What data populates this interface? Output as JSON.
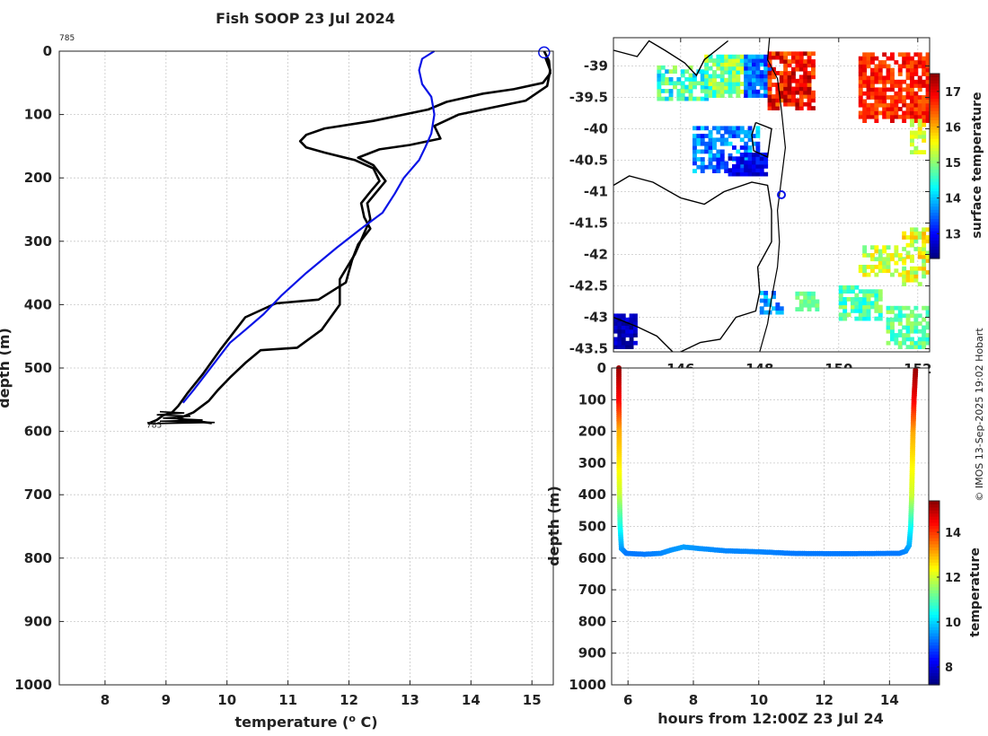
{
  "title": "Fish SOOP 23 Jul 2024",
  "credit": "© IMOS 13-Sep-2025 19:02 Hobart",
  "colors": {
    "profile_black": "#000000",
    "profile_blue": "#0a14e6",
    "grid": "#c8c8c8"
  },
  "chart_data": [
    {
      "type": "line",
      "name": "depth profile",
      "title": "Fish SOOP 23 Jul 2024",
      "xlabel": "temperature (",
      "xlabel_sup": "o",
      "xlabel_unit": " C)",
      "ylabel": "depth (m)",
      "xlim": [
        7.25,
        15.35
      ],
      "ylim": [
        0,
        1000
      ],
      "xticks": [
        "8",
        "9",
        "10",
        "11",
        "12",
        "13",
        "14",
        "15"
      ],
      "yticks": [
        "0",
        "100",
        "200",
        "300",
        "400",
        "500",
        "600",
        "700",
        "800",
        "900",
        "1000"
      ],
      "annotations": [
        {
          "text": "785",
          "x": 7.25,
          "y": 0,
          "position": "above-left"
        },
        {
          "text": "785",
          "x": 8.65,
          "y": 590,
          "position": "inline"
        }
      ],
      "start_marker": {
        "x": 15.2,
        "y": 2
      },
      "series": [
        {
          "name": "descent",
          "color": "black",
          "points": [
            [
              15.2,
              0
            ],
            [
              15.28,
              15
            ],
            [
              15.3,
              35
            ],
            [
              15.18,
              50
            ],
            [
              14.7,
              60
            ],
            [
              14.2,
              67
            ],
            [
              13.6,
              80
            ],
            [
              13.3,
              92
            ],
            [
              12.4,
              110
            ],
            [
              11.6,
              122
            ],
            [
              11.3,
              132
            ],
            [
              11.2,
              142
            ],
            [
              11.3,
              152
            ],
            [
              11.6,
              160
            ],
            [
              12.1,
              172
            ],
            [
              12.4,
              185
            ],
            [
              12.5,
              205
            ],
            [
              12.35,
              222
            ],
            [
              12.2,
              240
            ],
            [
              12.25,
              262
            ],
            [
              12.35,
              280
            ],
            [
              12.15,
              305
            ],
            [
              12.05,
              330
            ],
            [
              11.95,
              365
            ],
            [
              11.5,
              392
            ],
            [
              10.8,
              398
            ],
            [
              10.3,
              420
            ],
            [
              10.1,
              445
            ],
            [
              9.9,
              470
            ],
            [
              9.6,
              510
            ],
            [
              9.35,
              540
            ],
            [
              9.2,
              560
            ],
            [
              9.1,
              570
            ],
            [
              8.95,
              575
            ],
            [
              8.85,
              582
            ],
            [
              8.7,
              588
            ]
          ]
        },
        {
          "name": "ascent",
          "color": "black",
          "points": [
            [
              9.75,
              587
            ],
            [
              9.2,
              580
            ],
            [
              9.45,
              570
            ],
            [
              9.7,
              552
            ],
            [
              9.85,
              535
            ],
            [
              10.05,
              515
            ],
            [
              10.3,
              492
            ],
            [
              10.55,
              472
            ],
            [
              11.15,
              468
            ],
            [
              11.55,
              440
            ],
            [
              11.85,
              400
            ],
            [
              11.85,
              360
            ],
            [
              12.1,
              320
            ],
            [
              12.35,
              265
            ],
            [
              12.3,
              240
            ],
            [
              12.6,
              205
            ],
            [
              12.4,
              180
            ],
            [
              12.15,
              168
            ],
            [
              12.5,
              155
            ],
            [
              13.0,
              148
            ],
            [
              13.5,
              138
            ],
            [
              13.4,
              118
            ],
            [
              13.8,
              100
            ],
            [
              14.3,
              90
            ],
            [
              14.9,
              78
            ],
            [
              15.25,
              55
            ],
            [
              15.3,
              30
            ],
            [
              15.22,
              10
            ]
          ]
        },
        {
          "name": "reference profile",
          "color": "blue",
          "points": [
            [
              13.4,
              0
            ],
            [
              13.2,
              12
            ],
            [
              13.15,
              30
            ],
            [
              13.2,
              52
            ],
            [
              13.35,
              72
            ],
            [
              13.4,
              100
            ],
            [
              13.35,
              130
            ],
            [
              13.25,
              152
            ],
            [
              13.15,
              172
            ],
            [
              12.9,
              200
            ],
            [
              12.75,
              225
            ],
            [
              12.55,
              255
            ],
            [
              12.2,
              280
            ],
            [
              11.8,
              310
            ],
            [
              11.3,
              350
            ],
            [
              10.9,
              385
            ],
            [
              10.6,
              415
            ],
            [
              10.3,
              440
            ],
            [
              10.05,
              460
            ],
            [
              9.85,
              485
            ],
            [
              9.65,
              510
            ],
            [
              9.45,
              535
            ],
            [
              9.28,
              555
            ]
          ]
        }
      ]
    },
    {
      "type": "heatmap",
      "name": "surface temperature map",
      "xlim": [
        144.3,
        152.3
      ],
      "ylim": [
        -43.55,
        -38.55
      ],
      "xticks": [
        "146",
        "148",
        "150",
        "152"
      ],
      "yticks": [
        "-39",
        "-39.5",
        "-40",
        "-40.5",
        "-41",
        "-41.5",
        "-42",
        "-42.5",
        "-43",
        "-43.5"
      ],
      "colorbar": {
        "label": "surface temperature",
        "range": [
          12.3,
          17.5
        ],
        "ticks": [
          "13",
          "14",
          "15",
          "16",
          "17"
        ]
      },
      "marker": {
        "lon": 148.55,
        "lat": -41.05
      }
    },
    {
      "type": "scatter",
      "name": "depth vs time",
      "xlabel": "hours from 12:00Z 23 Jul 24",
      "ylabel": "depth (m)",
      "xlim": [
        5.5,
        15.2
      ],
      "ylim": [
        0,
        1000
      ],
      "xticks": [
        "6",
        "8",
        "10",
        "12",
        "14"
      ],
      "yticks": [
        "0",
        "100",
        "200",
        "300",
        "400",
        "500",
        "600",
        "700",
        "800",
        "900",
        "1000"
      ],
      "colorbar": {
        "label": "temperature",
        "range": [
          7.2,
          15.4
        ],
        "ticks": [
          "8",
          "10",
          "12",
          "14"
        ]
      },
      "points": [
        [
          5.72,
          0,
          15.2
        ],
        [
          5.72,
          100,
          14.4
        ],
        [
          5.73,
          200,
          13.0
        ],
        [
          5.73,
          300,
          12.5
        ],
        [
          5.74,
          400,
          11.9
        ],
        [
          5.76,
          500,
          10.5
        ],
        [
          5.8,
          570,
          9.5
        ],
        [
          5.95,
          585,
          9.2
        ],
        [
          6.5,
          588,
          9.2
        ],
        [
          7.0,
          585,
          9.3
        ],
        [
          7.3,
          575,
          9.4
        ],
        [
          7.7,
          565,
          9.5
        ],
        [
          8.2,
          570,
          9.4
        ],
        [
          9.0,
          577,
          9.3
        ],
        [
          10.0,
          580,
          9.3
        ],
        [
          11.0,
          585,
          9.2
        ],
        [
          12.0,
          586,
          9.2
        ],
        [
          13.0,
          586,
          9.2
        ],
        [
          14.0,
          585,
          9.2
        ],
        [
          14.3,
          585,
          9.2
        ],
        [
          14.5,
          578,
          9.3
        ],
        [
          14.6,
          560,
          9.6
        ],
        [
          14.65,
          500,
          10.3
        ],
        [
          14.68,
          400,
          11.9
        ],
        [
          14.7,
          300,
          12.4
        ],
        [
          14.72,
          200,
          13.0
        ],
        [
          14.75,
          100,
          14.4
        ],
        [
          14.8,
          0,
          15.2
        ]
      ]
    }
  ]
}
